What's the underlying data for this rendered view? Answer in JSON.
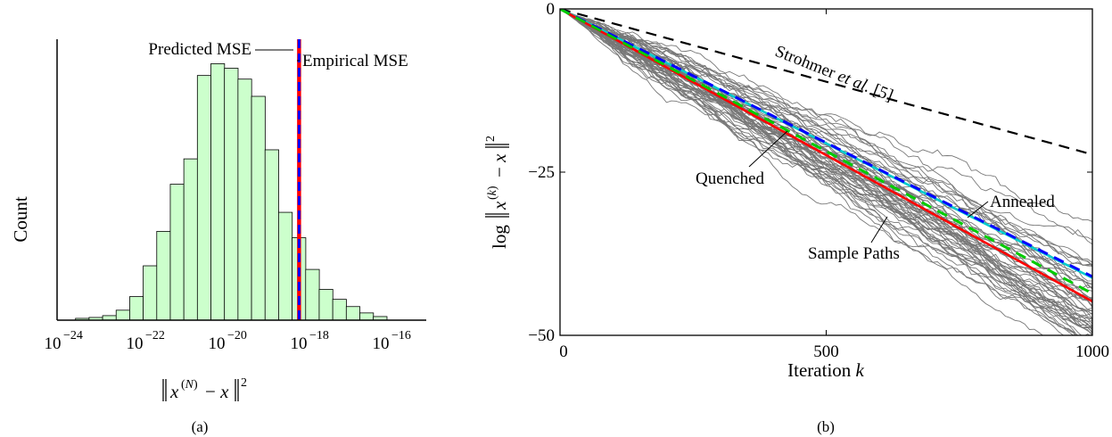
{
  "chart_data": [
    {
      "panel": "(a)",
      "type": "bar",
      "caption": "(a)",
      "xlabel_tex": "||x^(N) − x||^2",
      "ylabel": "Count",
      "x_scale": "log10",
      "xlim_exp": [
        -24,
        -15
      ],
      "xticks": [
        {
          "exp": -24,
          "label": "10",
          "sup": "−24"
        },
        {
          "exp": -22,
          "label": "10",
          "sup": "−22"
        },
        {
          "exp": -20,
          "label": "10",
          "sup": "−20"
        },
        {
          "exp": -18,
          "label": "10",
          "sup": "−18"
        },
        {
          "exp": -16,
          "label": "10",
          "sup": "−16"
        }
      ],
      "bin_width_exp": 0.333,
      "bins_left_exp": [
        -23.55,
        -23.22,
        -22.89,
        -22.56,
        -22.23,
        -21.9,
        -21.57,
        -21.24,
        -20.91,
        -20.58,
        -20.25,
        -19.92,
        -19.59,
        -19.26,
        -18.93,
        -18.6,
        -18.27,
        -17.94,
        -17.61,
        -17.28,
        -16.95,
        -16.62,
        -16.29
      ],
      "counts": [
        2,
        3,
        5,
        11,
        26,
        60,
        98,
        150,
        178,
        270,
        283,
        278,
        266,
        247,
        188,
        119,
        91,
        56,
        34,
        23,
        15,
        8,
        4
      ],
      "ylim": [
        0,
        310
      ],
      "lines": [
        {
          "label": "Predicted MSE",
          "x_exp": -18.1,
          "color": "#ff0000",
          "style": "solid"
        },
        {
          "label": "Empirical MSE",
          "x_exp": -18.1,
          "color": "#0000ff",
          "style": "dashed"
        }
      ],
      "annotations": [
        "Predicted MSE",
        "Empirical MSE"
      ],
      "colors": {
        "bar_fill": "#ccffcc",
        "bar_edge": "#000000"
      }
    },
    {
      "panel": "(b)",
      "type": "line",
      "caption": "(b)",
      "xlabel": "Iteration k",
      "ylabel_tex": "log ||x^(k) − x||^2",
      "xlim": [
        0,
        1000
      ],
      "ylim": [
        -50,
        0
      ],
      "xticks": [
        0,
        500,
        1000
      ],
      "yticks": [
        0,
        -25,
        -50
      ],
      "series": [
        {
          "name": "Sample Paths",
          "color": "#777777",
          "style": "thin",
          "end_range": [
            -39,
            -50
          ]
        },
        {
          "name": "Strohmer et al. [5]",
          "color": "#000000",
          "style": "dashed",
          "x": [
            0,
            1000
          ],
          "y": [
            0,
            -22.3
          ]
        },
        {
          "name": "Annealed",
          "color": "#00cccc",
          "style": "solid",
          "x": [
            0,
            1000
          ],
          "y": [
            0,
            -41.2
          ]
        },
        {
          "name": "Annealed",
          "color": "#0000ff",
          "style": "dashed",
          "x": [
            0,
            1000
          ],
          "y": [
            0,
            -41.0
          ]
        },
        {
          "name": "Quenched",
          "color": "#ff0000",
          "style": "solid",
          "x": [
            0,
            1000
          ],
          "y": [
            0,
            -44.8
          ]
        },
        {
          "name": "Quenched",
          "color": "#00cc00",
          "style": "dashed",
          "x": [
            0,
            1000
          ],
          "y": [
            0,
            -43.6
          ]
        }
      ],
      "annotations": {
        "strohmer_main": "Strohmer",
        "strohmer_italic": "et al.",
        "strohmer_ref": "[5]",
        "quenched": "Quenched",
        "annealed": "Annealed",
        "sample_paths": "Sample Paths"
      }
    }
  ]
}
